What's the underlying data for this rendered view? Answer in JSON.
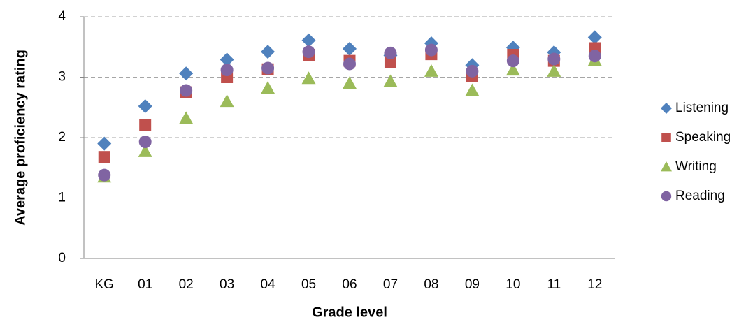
{
  "chart_data": {
    "type": "scatter",
    "xlabel": "Grade level",
    "ylabel": "Average proficiency rating",
    "categories": [
      "KG",
      "01",
      "02",
      "03",
      "04",
      "05",
      "06",
      "07",
      "08",
      "09",
      "10",
      "11",
      "12"
    ],
    "series": [
      {
        "name": "Listening",
        "color": "#4f81bd",
        "marker": "diamond",
        "values": [
          1.9,
          2.52,
          3.06,
          3.29,
          3.42,
          3.61,
          3.47,
          3.36,
          3.56,
          3.2,
          3.49,
          3.41,
          3.66
        ]
      },
      {
        "name": "Speaking",
        "color": "#c0504d",
        "marker": "square",
        "values": [
          1.68,
          2.21,
          2.75,
          3.0,
          3.13,
          3.37,
          3.27,
          3.25,
          3.38,
          3.02,
          3.37,
          3.27,
          3.48
        ]
      },
      {
        "name": "Writing",
        "color": "#9bbb59",
        "marker": "triangle",
        "values": [
          1.35,
          1.77,
          2.32,
          2.6,
          2.82,
          2.98,
          2.9,
          2.93,
          3.1,
          2.78,
          3.12,
          3.1,
          3.28
        ]
      },
      {
        "name": "Reading",
        "color": "#8064a2",
        "marker": "circle",
        "values": [
          1.38,
          1.93,
          2.78,
          3.12,
          3.15,
          3.42,
          3.22,
          3.4,
          3.45,
          3.1,
          3.27,
          3.3,
          3.35
        ]
      }
    ],
    "ylim": [
      0,
      4
    ],
    "yticks": [
      0,
      1,
      2,
      3,
      4
    ],
    "grid": true,
    "legend": "right"
  }
}
